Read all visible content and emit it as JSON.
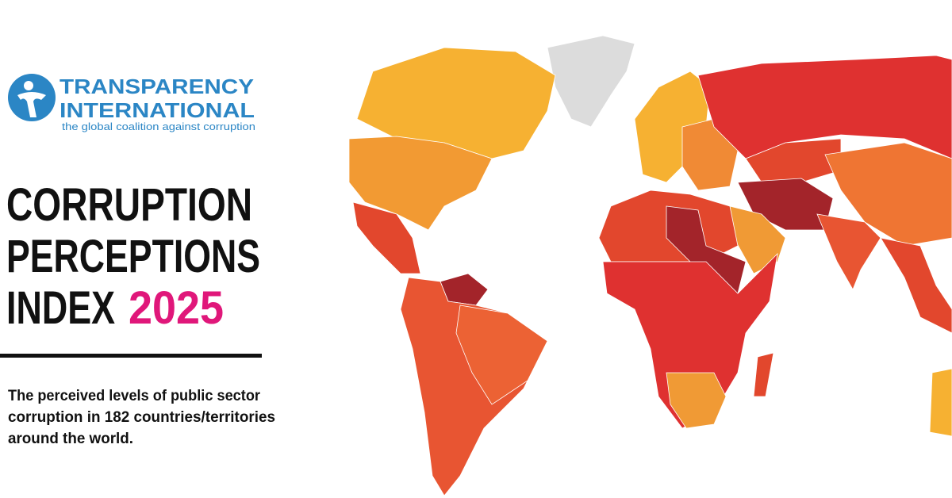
{
  "logo": {
    "name_lines": [
      "TRANSPARENCY",
      "INTERNATIONAL"
    ],
    "tagline": "the global coalition against corruption"
  },
  "title": {
    "lines": [
      "CORRUPTION",
      "PERCEPTIONS",
      "INDEX"
    ],
    "year": "2025"
  },
  "description": {
    "lines": [
      "The perceived levels of public sector",
      "corruption in 182 countries/territories",
      "around the world."
    ]
  }
}
